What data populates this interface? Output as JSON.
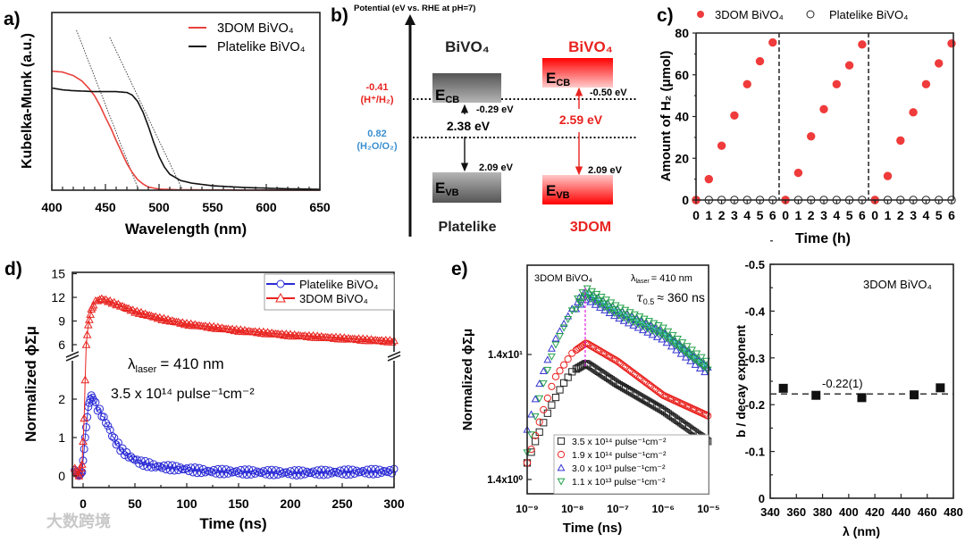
{
  "panel_labels": {
    "a": "a)",
    "b": "b)",
    "c": "c)",
    "d": "d)",
    "e": "e)"
  },
  "watermark": "大数跨境",
  "band_diagram": {
    "axis_title": "Potential (eV vs. RHE at pH=7)",
    "platelike": {
      "title": "BiVO₄",
      "name": "Platelike",
      "cb": "-0.29 eV",
      "vb": "2.09 eV",
      "gap": "2.38 eV",
      "color": "#222222"
    },
    "dom3": {
      "title": "BiVO₄",
      "name": "3DOM",
      "cb": "-0.50 eV",
      "vb": "2.09 eV",
      "gap": "2.59 eV",
      "color": "#e8231f"
    },
    "e_label": "E",
    "cb_sub": "CB",
    "vb_sub": "VB",
    "h2_level": {
      "value": "-0.41",
      "label": "(H⁺/H₂)",
      "color": "#e8231f"
    },
    "o2_level": {
      "value": "0.82",
      "label": "(H₂O/O₂)",
      "color": "#3a8fd0"
    }
  },
  "chart_data": [
    {
      "id": "a",
      "type": "line",
      "xlabel": "Wavelength (nm)",
      "ylabel": "Kubelka-Munk (a.u.)",
      "xlim": [
        400,
        650
      ],
      "ylim": [
        0,
        1
      ],
      "xticks": [
        400,
        450,
        500,
        550,
        600,
        650
      ],
      "legend_position": "top-right",
      "series": [
        {
          "name": "3DOM BiVO₄",
          "color": "#e8413c",
          "points": [
            [
              400,
              0.67
            ],
            [
              410,
              0.665
            ],
            [
              420,
              0.645
            ],
            [
              428,
              0.615
            ],
            [
              435,
              0.57
            ],
            [
              440,
              0.53
            ],
            [
              445,
              0.475
            ],
            [
              450,
              0.41
            ],
            [
              455,
              0.35
            ],
            [
              460,
              0.28
            ],
            [
              465,
              0.215
            ],
            [
              470,
              0.15
            ],
            [
              475,
              0.1
            ],
            [
              480,
              0.06
            ],
            [
              485,
              0.035
            ],
            [
              490,
              0.018
            ],
            [
              500,
              0.006
            ],
            [
              520,
              0.002
            ],
            [
              650,
              0.0
            ]
          ]
        },
        {
          "name": "Platelike BiVO₄",
          "color": "#111111",
          "points": [
            [
              400,
              0.575
            ],
            [
              410,
              0.565
            ],
            [
              420,
              0.56
            ],
            [
              440,
              0.555
            ],
            [
              460,
              0.555
            ],
            [
              470,
              0.55
            ],
            [
              475,
              0.535
            ],
            [
              480,
              0.5
            ],
            [
              485,
              0.44
            ],
            [
              490,
              0.36
            ],
            [
              495,
              0.27
            ],
            [
              500,
              0.19
            ],
            [
              505,
              0.13
            ],
            [
              510,
              0.09
            ],
            [
              520,
              0.055
            ],
            [
              530,
              0.04
            ],
            [
              550,
              0.025
            ],
            [
              580,
              0.015
            ],
            [
              620,
              0.008
            ],
            [
              650,
              0.005
            ]
          ]
        }
      ],
      "tangents": [
        [
          [
            423,
            0.9
          ],
          [
            481,
            0.0
          ]
        ],
        [
          [
            454,
            0.86
          ],
          [
            522,
            0.0
          ]
        ]
      ]
    },
    {
      "id": "c",
      "type": "scatter",
      "xlabel": "Time (h)",
      "ylabel": "Amount of H₂ (μmol)",
      "ylim": [
        0,
        80
      ],
      "yticks": [
        0,
        20,
        40,
        60,
        80
      ],
      "xticks": [
        "0",
        "1",
        "2",
        "3",
        "4",
        "5",
        "6",
        "0",
        "1",
        "2",
        "3",
        "4",
        "5",
        "6",
        "0",
        "1",
        "2",
        "3",
        "4",
        "5",
        "6"
      ],
      "legend_position": "top",
      "series": [
        {
          "name": "3DOM BiVO₄",
          "color": "#ef3b3b",
          "marker": "filled-circle",
          "values": [
            0,
            10,
            26,
            40.5,
            55.5,
            66.5,
            75.5,
            0,
            13,
            30.5,
            43.5,
            55.5,
            64.5,
            74.5,
            0,
            11.5,
            28.5,
            42,
            55.5,
            65.5,
            75
          ]
        },
        {
          "name": "Platelike BiVO₄",
          "color": "#222222",
          "marker": "open-circle",
          "values": [
            0,
            0,
            0,
            0,
            0,
            0,
            0,
            0,
            0,
            0,
            0,
            0,
            0,
            0,
            0,
            0,
            0,
            0,
            0,
            0,
            0
          ]
        }
      ]
    },
    {
      "id": "d",
      "type": "scatter",
      "xlabel": "Time (ns)",
      "ylabel": "Normalized ϕΣμ",
      "xlim": [
        -10,
        300
      ],
      "xticks": [
        0,
        50,
        100,
        150,
        200,
        250,
        300
      ],
      "yticks_upper": [
        6,
        9,
        12,
        15
      ],
      "yticks_lower": [
        0,
        1,
        2
      ],
      "ylim_upper": [
        5.3,
        15
      ],
      "ylim_lower": [
        -0.3,
        2.8
      ],
      "legend_position": "top-right",
      "annotations": {
        "laser_lambda": "λ",
        "laser_sub": "laser",
        "laser_val": "= 410 nm",
        "fluence": "3.5 x 10¹⁴ pulse⁻¹cm⁻²"
      },
      "series": [
        {
          "name": "Platelike BiVO₄",
          "color": "#2b2bd6",
          "marker": "open-circle",
          "points": [
            [
              -8,
              0.15
            ],
            [
              -4,
              0
            ],
            [
              -1,
              0.1
            ],
            [
              2,
              1.0
            ],
            [
              5,
              1.8
            ],
            [
              8,
              2.1
            ],
            [
              12,
              1.85
            ],
            [
              18,
              1.6
            ],
            [
              24,
              1.3
            ],
            [
              30,
              0.95
            ],
            [
              38,
              0.65
            ],
            [
              45,
              0.5
            ],
            [
              55,
              0.35
            ],
            [
              70,
              0.25
            ],
            [
              90,
              0.2
            ],
            [
              120,
              0.12
            ],
            [
              160,
              0.1
            ],
            [
              200,
              0.08
            ],
            [
              250,
              0.1
            ],
            [
              300,
              0.12
            ]
          ]
        },
        {
          "name": "3DOM BiVO₄",
          "color": "#e8231f",
          "marker": "open-triangle",
          "points": [
            [
              -8,
              0.2
            ],
            [
              -4,
              0
            ],
            [
              -1,
              0.3
            ],
            [
              1,
              1.5
            ],
            [
              2,
              2.5
            ],
            [
              3,
              6
            ],
            [
              5,
              8.5
            ],
            [
              8,
              10.5
            ],
            [
              12,
              11.5
            ],
            [
              18,
              11.8
            ],
            [
              25,
              11.5
            ],
            [
              35,
              11
            ],
            [
              50,
              10.2
            ],
            [
              75,
              9.3
            ],
            [
              100,
              8.6
            ],
            [
              150,
              7.8
            ],
            [
              200,
              7.2
            ],
            [
              250,
              6.8
            ],
            [
              300,
              6.4
            ]
          ]
        }
      ]
    },
    {
      "id": "e",
      "type": "scatter",
      "xlabel": "Time (ns)",
      "ylabel": "Normalized ϕΣμ",
      "xscale": "log",
      "yscale": "log",
      "xlim": [
        1e-09,
        1e-05
      ],
      "xticks": [
        "10⁻⁹",
        "10⁻⁸",
        "10⁻⁷",
        "10⁻⁶",
        "10⁻⁵"
      ],
      "yticks": [
        "1.4x10⁰",
        "1.4x10¹"
      ],
      "ytick_values": [
        1.4,
        14
      ],
      "ylim": [
        0.9,
        72
      ],
      "legend_position": "bottom-right",
      "annotations": {
        "sample": "3DOM BiVO₄",
        "laser_lambda": "λ",
        "laser_sub": "laser",
        "laser_val": "= 410 nm",
        "tau": "τ",
        "tau_sub": "0.5",
        "tau_val": "≈ 360 ns"
      },
      "series": [
        {
          "name": "3.5 x 10¹⁴ pulse⁻¹cm⁻²",
          "color": "#222222",
          "marker": "open-square",
          "points": [
            [
              1e-09,
              1.9
            ],
            [
              1.5e-09,
              2.8
            ],
            [
              3e-09,
              5
            ],
            [
              6e-09,
              8
            ],
            [
              1e-08,
              10.3
            ],
            [
              2e-08,
              11.9
            ],
            [
              1e-07,
              8.1
            ],
            [
              1e-06,
              5.0
            ],
            [
              1e-05,
              2.8
            ]
          ]
        },
        {
          "name": "1.9 x 10¹⁴ pulse⁻¹cm⁻²",
          "color": "#e8231f",
          "marker": "open-circle",
          "points": [
            [
              1e-09,
              1.9
            ],
            [
              2e-09,
              4.4
            ],
            [
              4e-09,
              9
            ],
            [
              1e-08,
              14.5
            ],
            [
              2e-08,
              17.3
            ],
            [
              1e-07,
              12.3
            ],
            [
              1e-06,
              6.6
            ],
            [
              1e-05,
              4.5
            ]
          ]
        },
        {
          "name": "3.0 x 10¹³ pulse⁻¹cm⁻²",
          "color": "#3535d0",
          "marker": "open-triangle-up",
          "points": [
            [
              1e-09,
              3.5
            ],
            [
              2e-09,
              9
            ],
            [
              4e-09,
              18
            ],
            [
              1e-08,
              33
            ],
            [
              2e-08,
              42
            ],
            [
              1e-07,
              30
            ],
            [
              1e-06,
              20
            ],
            [
              1e-05,
              10.5
            ]
          ]
        },
        {
          "name": "1.1 x 10¹³ pulse⁻¹cm⁻²",
          "color": "#22a04a",
          "marker": "open-triangle-down",
          "points": [
            [
              1e-09,
              2.3
            ],
            [
              2e-09,
              7
            ],
            [
              4e-09,
              16
            ],
            [
              1e-08,
              32
            ],
            [
              2e-08,
              44
            ],
            [
              1e-07,
              31
            ],
            [
              1e-06,
              21
            ],
            [
              1e-05,
              11
            ]
          ]
        }
      ]
    },
    {
      "id": "f",
      "type": "scatter",
      "xlabel": "λ (nm)",
      "ylabel": "b / decay exponent",
      "xlim": [
        340,
        480
      ],
      "xticks": [
        340,
        360,
        380,
        400,
        420,
        440,
        460,
        480
      ],
      "ylim": [
        0,
        -0.5
      ],
      "yticks": [
        "0",
        "-0.1",
        "-0.2",
        "-0.3",
        "-0.4",
        "-0.5"
      ],
      "annotation": "3DOM BiVO₄",
      "fit_label": "-0.22(1)",
      "fit_value": -0.223,
      "series": [
        {
          "name": "decay exponent",
          "color": "#111111",
          "marker": "filled-square",
          "points": [
            [
              350,
              -0.235
            ],
            [
              375,
              -0.22
            ],
            [
              410,
              -0.215
            ],
            [
              450,
              -0.221
            ],
            [
              470,
              -0.236
            ]
          ]
        }
      ]
    }
  ]
}
